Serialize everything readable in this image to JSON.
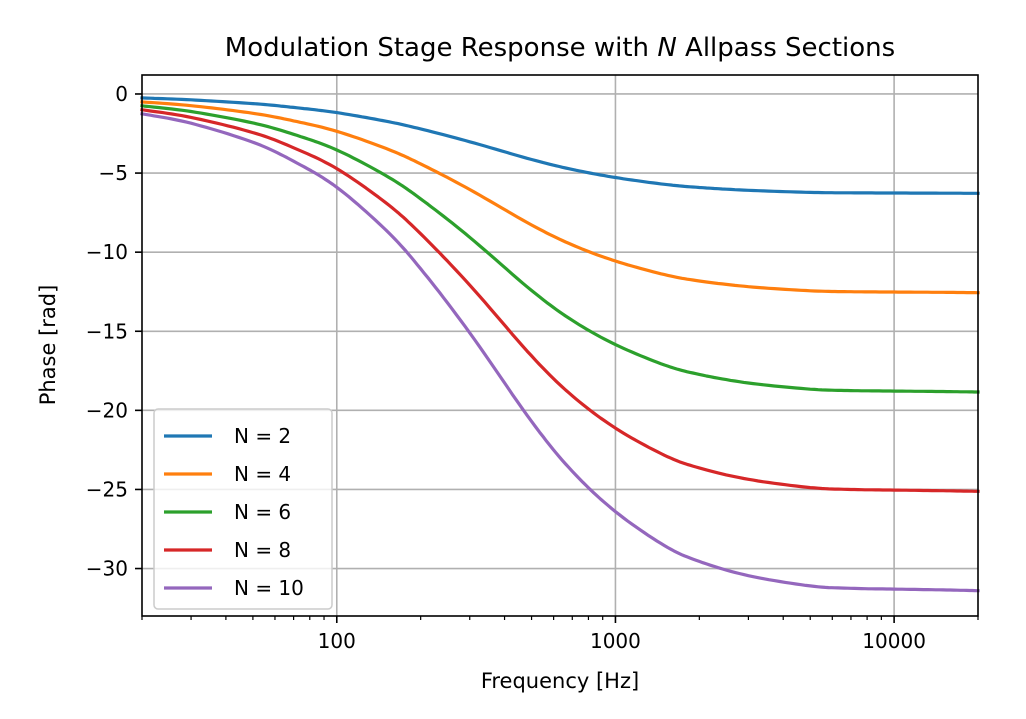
{
  "chart_data": {
    "type": "line",
    "title_prefix": "Modulation Stage Response with ",
    "title_italic": "N",
    "title_suffix": " Allpass Sections",
    "xlabel": "Frequency [Hz]",
    "ylabel": "Phase [rad]",
    "x_scale": "log",
    "xlim": [
      20,
      20000
    ],
    "ylim": [
      -33,
      1.2
    ],
    "grid": true,
    "legend_position": "lower-left",
    "x_ticks": [
      {
        "value": 100,
        "label": "100"
      },
      {
        "value": 1000,
        "label": "1000"
      },
      {
        "value": 10000,
        "label": "10000"
      }
    ],
    "y_ticks": [
      {
        "value": 0,
        "label": "0"
      },
      {
        "value": -5,
        "label": "−5"
      },
      {
        "value": -10,
        "label": "−10"
      },
      {
        "value": -15,
        "label": "−15"
      },
      {
        "value": -20,
        "label": "−20"
      },
      {
        "value": -25,
        "label": "−25"
      },
      {
        "value": -30,
        "label": "−30"
      }
    ],
    "x": [
      20,
      30,
      50,
      70,
      100,
      150,
      200,
      300,
      500,
      700,
      1000,
      1500,
      2000,
      3000,
      5000,
      7000,
      10000,
      15000,
      20000
    ],
    "series": [
      {
        "name": "N = 2",
        "color": "#1f77b4",
        "values": [
          -0.25,
          -0.37,
          -0.61,
          -0.85,
          -1.18,
          -1.72,
          -2.21,
          -3.02,
          -4.14,
          -4.77,
          -5.28,
          -5.71,
          -5.91,
          -6.09,
          -6.22,
          -6.25,
          -6.26,
          -6.27,
          -6.28
        ]
      },
      {
        "name": "N = 4",
        "color": "#ff7f0e",
        "values": [
          -0.5,
          -0.74,
          -1.22,
          -1.7,
          -2.36,
          -3.44,
          -4.42,
          -6.04,
          -8.28,
          -9.54,
          -10.56,
          -11.42,
          -11.82,
          -12.18,
          -12.44,
          -12.5,
          -12.52,
          -12.54,
          -12.56
        ]
      },
      {
        "name": "N = 6",
        "color": "#2ca02c",
        "values": [
          -0.75,
          -1.11,
          -1.83,
          -2.55,
          -3.54,
          -5.16,
          -6.63,
          -9.06,
          -12.42,
          -14.31,
          -15.84,
          -17.13,
          -17.73,
          -18.27,
          -18.66,
          -18.75,
          -18.78,
          -18.81,
          -18.84
        ]
      },
      {
        "name": "N = 8",
        "color": "#d62728",
        "values": [
          -1.0,
          -1.48,
          -2.44,
          -3.4,
          -4.72,
          -6.88,
          -8.84,
          -12.08,
          -16.56,
          -19.08,
          -21.12,
          -22.84,
          -23.64,
          -24.36,
          -24.88,
          -25.0,
          -25.04,
          -25.08,
          -25.12
        ]
      },
      {
        "name": "N = 10",
        "color": "#9467bd",
        "values": [
          -1.25,
          -1.85,
          -3.05,
          -4.25,
          -5.9,
          -8.6,
          -11.05,
          -15.1,
          -20.7,
          -23.85,
          -26.4,
          -28.55,
          -29.55,
          -30.45,
          -31.1,
          -31.25,
          -31.3,
          -31.35,
          -31.4
        ]
      }
    ]
  }
}
